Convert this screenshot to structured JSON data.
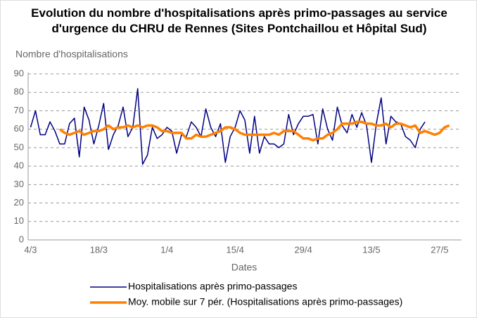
{
  "chart_data": {
    "type": "line",
    "title": "Evolution du nombre d'hospitalisations après primo-passages au service d'urgence du CHRU de Rennes (Sites Pontchaillou et Hôpital Sud)",
    "y_label": "Nombre d'hospitalisations",
    "x_label": "Dates",
    "categories": [
      "4/3",
      null,
      null,
      null,
      null,
      null,
      null,
      null,
      null,
      null,
      null,
      null,
      null,
      null,
      "18/3",
      null,
      null,
      null,
      null,
      null,
      null,
      null,
      null,
      null,
      null,
      null,
      null,
      null,
      "1/4",
      null,
      null,
      null,
      null,
      null,
      null,
      null,
      null,
      null,
      null,
      null,
      null,
      null,
      "15/4",
      null,
      null,
      null,
      null,
      null,
      null,
      null,
      null,
      null,
      null,
      null,
      null,
      null,
      "29/4",
      null,
      null,
      null,
      null,
      null,
      null,
      null,
      null,
      null,
      null,
      null,
      null,
      null,
      "13/5",
      null,
      null,
      null,
      null,
      null,
      null,
      null,
      null,
      null,
      null,
      null,
      null,
      null,
      "27/5",
      null,
      null,
      null,
      null
    ],
    "series": [
      {
        "name": "Hospitalisations après primo-passages",
        "color": "#000080",
        "width": 1.5,
        "values": [
          61,
          70,
          57,
          57,
          64,
          59,
          52,
          52,
          63,
          66,
          45,
          72,
          65,
          52,
          62,
          74,
          49,
          57,
          62,
          72,
          56,
          61,
          82,
          41,
          46,
          61,
          55,
          57,
          61,
          59,
          47,
          57,
          56,
          64,
          61,
          56,
          71,
          61,
          56,
          63,
          42,
          56,
          61,
          70,
          65,
          47,
          67,
          47,
          56,
          52,
          52,
          50,
          52,
          68,
          57,
          63,
          67,
          67,
          68,
          52,
          71,
          60,
          54,
          72,
          62,
          58,
          68,
          61,
          69,
          62,
          42,
          63,
          77,
          52,
          67,
          64,
          63,
          56,
          54,
          50,
          60,
          64,
          null,
          null,
          null,
          null,
          null,
          null,
          null
        ]
      },
      {
        "name": "Moy. mobile sur 7 pér. (Hospitalisations après primo-passages)",
        "color": "#ff8000",
        "width": 3.5,
        "values": [
          null,
          null,
          null,
          null,
          null,
          null,
          60,
          58,
          57,
          58,
          59,
          57,
          58,
          59,
          59,
          60,
          62,
          60,
          61,
          61,
          62,
          61,
          62,
          61,
          62,
          62,
          61,
          59,
          59,
          58,
          58,
          58,
          55,
          55,
          57,
          56,
          56,
          57,
          58,
          59,
          61,
          61,
          60,
          58,
          57,
          57,
          57,
          57,
          57,
          57,
          58,
          57,
          59,
          59,
          59,
          57,
          55,
          55,
          54,
          55,
          55,
          57,
          58,
          60,
          63,
          63,
          63,
          64,
          64,
          63,
          63,
          62,
          62,
          63,
          61,
          63,
          63,
          62,
          61,
          62,
          58,
          59,
          58,
          57,
          58,
          61,
          62,
          null,
          null
        ]
      }
    ],
    "ylim": [
      0,
      90
    ],
    "yticks": [
      0,
      10,
      20,
      30,
      40,
      50,
      60,
      70,
      80,
      90
    ],
    "grid": true
  }
}
